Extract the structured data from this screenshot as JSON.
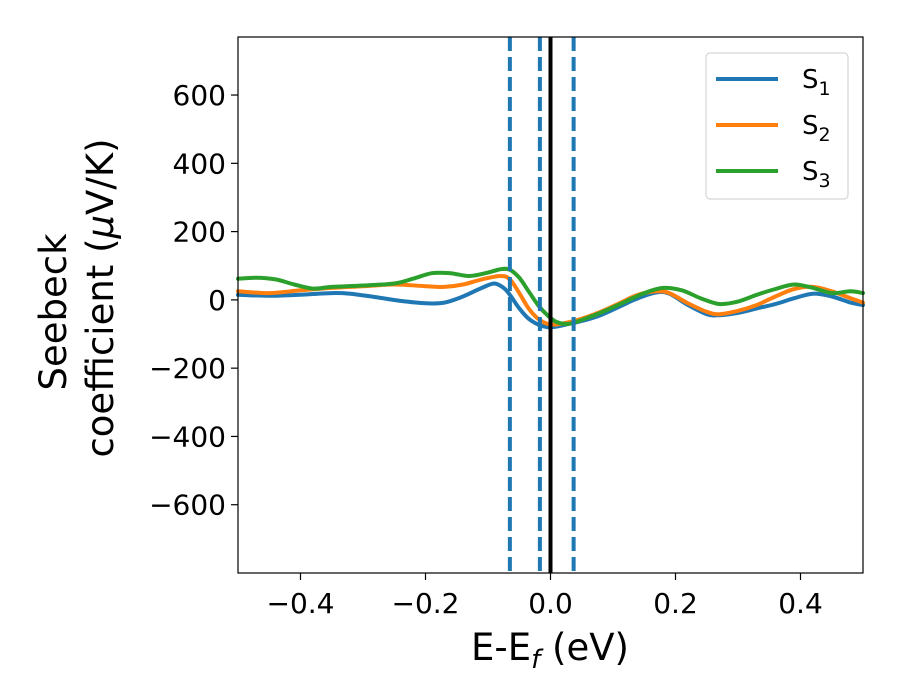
{
  "chart_data": {
    "type": "line",
    "xlabel": {
      "main": "E-E",
      "sub": "f",
      "unit": " (eV)"
    },
    "ylabel": {
      "line1": "Seebeck",
      "line2": "coefficient  (",
      "mu": "μ",
      "line2_end": "V/K)"
    },
    "xlim": [
      -0.5,
      0.5
    ],
    "ylim": [
      -800,
      770
    ],
    "xticks": [
      -0.4,
      -0.2,
      0.0,
      0.2,
      0.4
    ],
    "xtick_labels": [
      "−0.4",
      "−0.2",
      "0.0",
      "0.2",
      "0.4"
    ],
    "yticks": [
      -600,
      -400,
      -200,
      0,
      200,
      400,
      600
    ],
    "ytick_labels": [
      "−600",
      "−400",
      "−200",
      "0",
      "200",
      "400",
      "600"
    ],
    "legend_position": "top-right",
    "series": [
      {
        "name": "S",
        "sub": "1",
        "color": "#1f77b4",
        "x": [
          -0.5,
          -0.45,
          -0.4,
          -0.35,
          -0.32,
          -0.28,
          -0.24,
          -0.2,
          -0.17,
          -0.14,
          -0.11,
          -0.09,
          -0.075,
          -0.065,
          -0.05,
          -0.035,
          -0.02,
          -0.005,
          0.01,
          0.03,
          0.05,
          0.08,
          0.11,
          0.14,
          0.17,
          0.19,
          0.22,
          0.25,
          0.27,
          0.3,
          0.33,
          0.36,
          0.39,
          0.42,
          0.45,
          0.48,
          0.5
        ],
        "y": [
          15,
          12,
          15,
          20,
          18,
          8,
          -3,
          -10,
          -8,
          10,
          35,
          48,
          35,
          15,
          -25,
          -55,
          -72,
          -80,
          -78,
          -70,
          -62,
          -45,
          -20,
          5,
          22,
          18,
          -15,
          -42,
          -45,
          -38,
          -25,
          -12,
          5,
          18,
          10,
          -8,
          -15
        ]
      },
      {
        "name": "S",
        "sub": "2",
        "color": "#ff7f0e",
        "x": [
          -0.5,
          -0.45,
          -0.4,
          -0.35,
          -0.3,
          -0.25,
          -0.2,
          -0.17,
          -0.14,
          -0.11,
          -0.08,
          -0.065,
          -0.05,
          -0.035,
          -0.02,
          -0.005,
          0.01,
          0.03,
          0.05,
          0.08,
          0.11,
          0.14,
          0.17,
          0.19,
          0.22,
          0.25,
          0.27,
          0.3,
          0.33,
          0.36,
          0.39,
          0.42,
          0.45,
          0.48,
          0.5
        ],
        "y": [
          25,
          20,
          28,
          35,
          40,
          45,
          40,
          38,
          45,
          60,
          70,
          60,
          20,
          -25,
          -55,
          -70,
          -72,
          -65,
          -55,
          -35,
          -10,
          15,
          25,
          20,
          -10,
          -35,
          -42,
          -32,
          -15,
          10,
          32,
          38,
          25,
          5,
          -8
        ]
      },
      {
        "name": "S",
        "sub": "3",
        "color": "#2ca02c",
        "x": [
          -0.5,
          -0.47,
          -0.44,
          -0.41,
          -0.38,
          -0.35,
          -0.3,
          -0.25,
          -0.22,
          -0.19,
          -0.16,
          -0.13,
          -0.1,
          -0.08,
          -0.065,
          -0.05,
          -0.035,
          -0.02,
          -0.005,
          0.01,
          0.03,
          0.06,
          0.09,
          0.12,
          0.15,
          0.18,
          0.21,
          0.24,
          0.27,
          0.3,
          0.33,
          0.36,
          0.39,
          0.42,
          0.45,
          0.48,
          0.5
        ],
        "y": [
          62,
          65,
          60,
          45,
          33,
          38,
          42,
          48,
          62,
          78,
          78,
          70,
          80,
          90,
          88,
          65,
          25,
          -15,
          -45,
          -65,
          -70,
          -52,
          -30,
          -5,
          20,
          35,
          28,
          5,
          -12,
          -5,
          15,
          32,
          45,
          35,
          20,
          25,
          20
        ]
      }
    ],
    "vertical_lines": [
      {
        "x": -0.065,
        "style": "dashed",
        "color": "#1f77b4"
      },
      {
        "x": -0.017,
        "style": "dashed",
        "color": "#1f77b4"
      },
      {
        "x": 0.0,
        "style": "solid",
        "color": "#000000"
      },
      {
        "x": 0.037,
        "style": "dashed",
        "color": "#1f77b4"
      }
    ]
  }
}
